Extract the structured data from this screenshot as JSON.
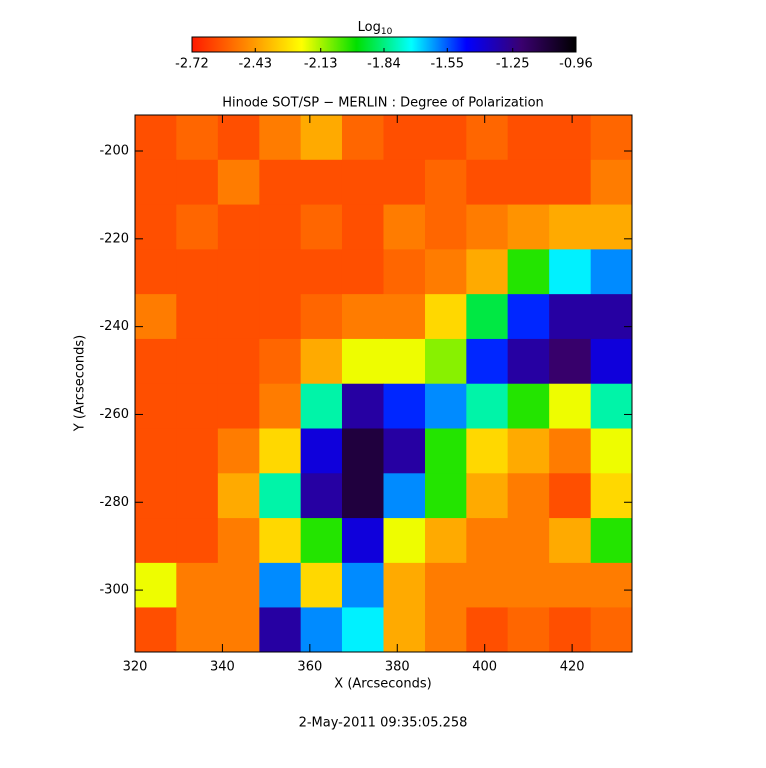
{
  "chart_data": {
    "type": "heatmap",
    "title": "Hinode SOT/SP − MERLIN : Degree of Polarization",
    "x_label": "X (Arcseconds)",
    "y_label": "Y (Arcseconds)",
    "footer": "2-May-2011 09:35:05.258",
    "colorbar_label": "Log",
    "colorbar_label_sub": "10",
    "colormap": [
      "#ff1a00",
      "#ff8a00",
      "#ffff00",
      "#00e000",
      "#00ffff",
      "#0000ff",
      "#3a0070",
      "#000000"
    ],
    "zlim": [
      -2.72,
      -0.96
    ],
    "zticks": [
      -2.72,
      -2.43,
      -2.13,
      -1.84,
      -1.55,
      -1.25,
      -0.96
    ],
    "xlim": [
      320,
      433.7
    ],
    "xticks": [
      320,
      340,
      360,
      380,
      400,
      420
    ],
    "ylim": [
      -314.1,
      -191.8
    ],
    "yticks": [
      -300,
      -280,
      -260,
      -240,
      -220,
      -200
    ],
    "x": [
      324.7,
      334.2,
      343.7,
      353.2,
      362.6,
      372.1,
      381.6,
      391.1,
      400.5,
      410.0,
      419.5,
      429.0
    ],
    "y": [
      -196.9,
      -207.1,
      -217.3,
      -227.5,
      -237.7,
      -247.9,
      -258.1,
      -268.3,
      -278.5,
      -288.7,
      -298.9,
      -309.0
    ],
    "z": [
      [
        -2.6,
        -2.55,
        -2.6,
        -2.5,
        -2.4,
        -2.55,
        -2.6,
        -2.6,
        -2.55,
        -2.6,
        -2.6,
        -2.55
      ],
      [
        -2.6,
        -2.6,
        -2.5,
        -2.6,
        -2.6,
        -2.6,
        -2.6,
        -2.55,
        -2.6,
        -2.6,
        -2.6,
        -2.5
      ],
      [
        -2.6,
        -2.55,
        -2.6,
        -2.6,
        -2.55,
        -2.6,
        -2.5,
        -2.55,
        -2.5,
        -2.45,
        -2.4,
        -2.4
      ],
      [
        -2.6,
        -2.6,
        -2.6,
        -2.6,
        -2.6,
        -2.6,
        -2.55,
        -2.5,
        -2.4,
        -2.0,
        -1.7,
        -1.6
      ],
      [
        -2.5,
        -2.6,
        -2.6,
        -2.6,
        -2.55,
        -2.5,
        -2.5,
        -2.3,
        -1.9,
        -1.5,
        -1.3,
        -1.3
      ],
      [
        -2.6,
        -2.6,
        -2.6,
        -2.55,
        -2.4,
        -2.2,
        -2.2,
        -2.1,
        -1.5,
        -1.3,
        -1.2,
        -1.4
      ],
      [
        -2.6,
        -2.6,
        -2.6,
        -2.5,
        -1.8,
        -1.3,
        -1.5,
        -1.6,
        -1.8,
        -2.0,
        -2.2,
        -1.8
      ],
      [
        -2.6,
        -2.6,
        -2.5,
        -2.3,
        -1.4,
        -1.1,
        -1.3,
        -2.0,
        -2.3,
        -2.4,
        -2.5,
        -2.2
      ],
      [
        -2.6,
        -2.6,
        -2.4,
        -1.8,
        -1.3,
        -1.1,
        -1.6,
        -2.0,
        -2.4,
        -2.5,
        -2.6,
        -2.3
      ],
      [
        -2.6,
        -2.6,
        -2.5,
        -2.3,
        -2.0,
        -1.4,
        -2.2,
        -2.4,
        -2.5,
        -2.5,
        -2.4,
        -2.0
      ],
      [
        -2.2,
        -2.5,
        -2.5,
        -1.6,
        -2.3,
        -1.6,
        -2.4,
        -2.5,
        -2.5,
        -2.5,
        -2.5,
        -2.5
      ],
      [
        -2.6,
        -2.5,
        -2.5,
        -1.3,
        -1.6,
        -1.7,
        -2.4,
        -2.5,
        -2.6,
        -2.55,
        -2.6,
        -2.55
      ]
    ]
  }
}
